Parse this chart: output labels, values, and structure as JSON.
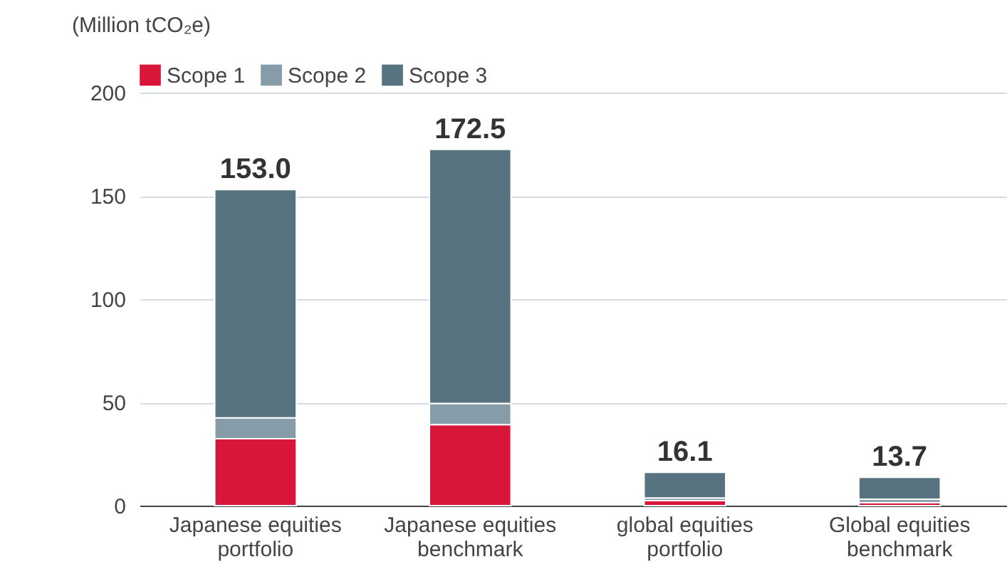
{
  "chart_data": {
    "type": "bar",
    "stacked": true,
    "ylabel": "(Million tCO₂e)",
    "categories": [
      "Japanese equities portfolio",
      "Japanese equities benchmark",
      "global equities portfolio",
      "Global equities benchmark"
    ],
    "series": [
      {
        "name": "Scope 1",
        "color": "#d7163a",
        "values": [
          32.4,
          39.2,
          2.4,
          1.5
        ]
      },
      {
        "name": "Scope 2",
        "color": "#869ca8",
        "values": [
          10.1,
          10.3,
          1.3,
          1.6
        ]
      },
      {
        "name": "Scope 3",
        "color": "#56737f",
        "values": [
          110.5,
          123.0,
          12.4,
          10.6
        ]
      }
    ],
    "totals": [
      "153.0",
      "172.5",
      "16.1",
      "13.7"
    ],
    "ylim": [
      0,
      200
    ],
    "yticks": [
      0,
      50,
      100,
      150,
      200
    ],
    "grid": "y",
    "legend": "top"
  }
}
